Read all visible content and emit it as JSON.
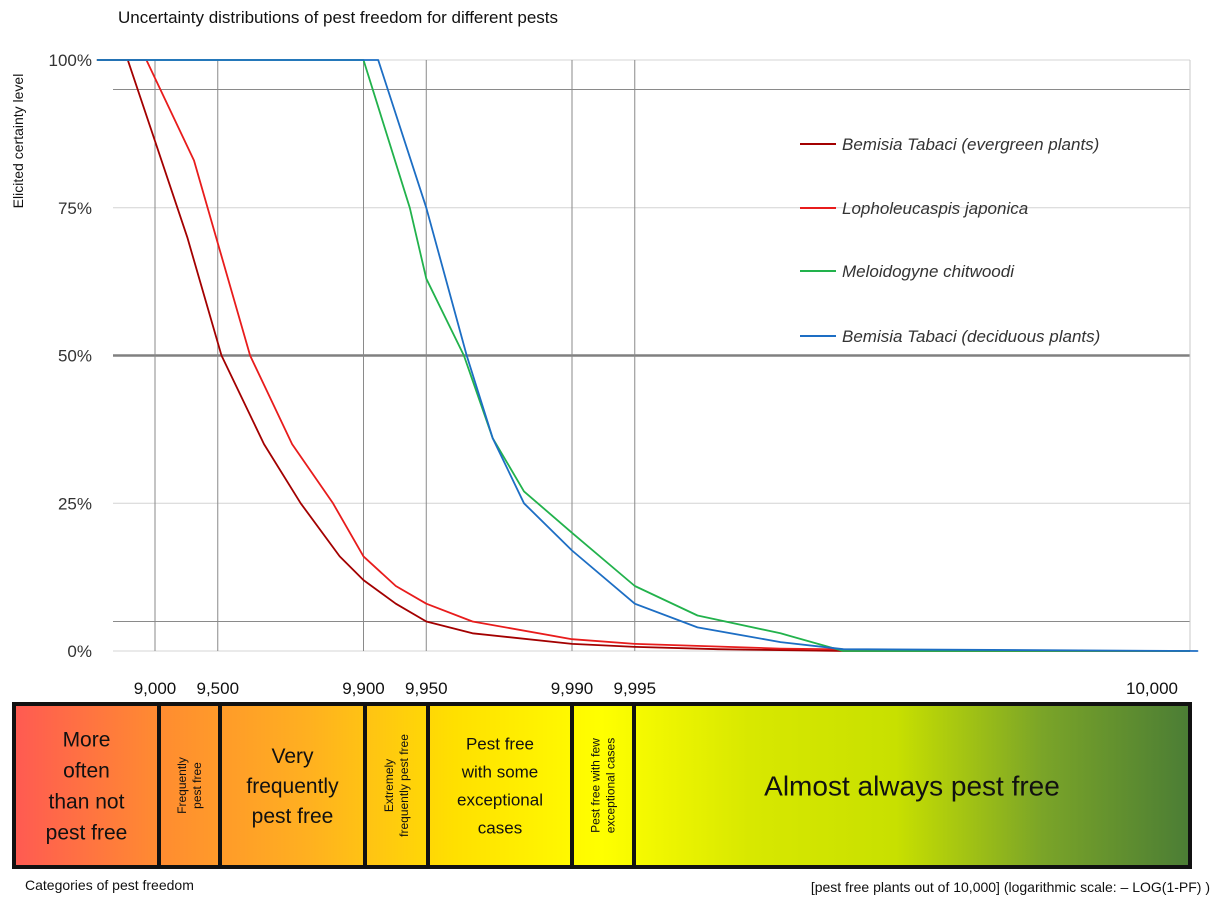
{
  "chart_data": {
    "type": "line",
    "title": "Uncertainty distributions of pest freedom for different pests",
    "ylabel": "Elicited certainty level",
    "xlabel": "[pest free plants out of 10,000] (logarithmic scale: – LOG(1-PF) )",
    "x_scale": "log",
    "y_ticks": [
      "0%",
      "25%",
      "50%",
      "75%",
      "100%"
    ],
    "y_tick_values": [
      0,
      25,
      50,
      75,
      100
    ],
    "ylim": [
      0,
      100
    ],
    "x_ticks": [
      "9,000",
      "9,500",
      "9,900",
      "9,950",
      "9,990",
      "9,995",
      "10,000"
    ],
    "x_tick_values": [
      9000,
      9500,
      9900,
      9950,
      9990,
      9995,
      10000
    ],
    "reference_lines_y": [
      5,
      50,
      95
    ],
    "legend_position": "right",
    "series": [
      {
        "name": "Bemisia Tabaci (evergreen plants)",
        "color": "#a30000",
        "points": [
          [
            8100,
            100
          ],
          [
            8650,
            100
          ],
          [
            9300,
            70
          ],
          [
            9520,
            50
          ],
          [
            9700,
            35
          ],
          [
            9800,
            25
          ],
          [
            9870,
            16
          ],
          [
            9900,
            12
          ],
          [
            9930,
            8
          ],
          [
            9950,
            5
          ],
          [
            9970,
            3
          ],
          [
            9990,
            1.2
          ],
          [
            9995,
            0.7
          ],
          [
            9998,
            0.3
          ],
          [
            9999.5,
            0
          ]
        ]
      },
      {
        "name": "Lopholeucaspis japonica",
        "color": "#e81c1c",
        "points": [
          [
            8100,
            100
          ],
          [
            8900,
            100
          ],
          [
            9350,
            83
          ],
          [
            9650,
            50
          ],
          [
            9780,
            35
          ],
          [
            9860,
            25
          ],
          [
            9900,
            16
          ],
          [
            9930,
            11
          ],
          [
            9950,
            8
          ],
          [
            9970,
            5
          ],
          [
            9990,
            2
          ],
          [
            9995,
            1.2
          ],
          [
            9999,
            0.4
          ],
          [
            9999.9,
            0
          ]
        ]
      },
      {
        "name": "Meloidogyne chitwoodi",
        "color": "#22b24c",
        "points": [
          [
            8100,
            100
          ],
          [
            9900,
            100
          ],
          [
            9940,
            75
          ],
          [
            9950,
            63
          ],
          [
            9967,
            50
          ],
          [
            9976,
            36
          ],
          [
            9983,
            27
          ],
          [
            9990,
            20
          ],
          [
            9995,
            11
          ],
          [
            9997.5,
            6
          ],
          [
            9999,
            3
          ],
          [
            9999.5,
            0
          ]
        ]
      },
      {
        "name": "Bemisia Tabaci (deciduous plants)",
        "color": "#1d6ec4",
        "points": [
          [
            8100,
            100
          ],
          [
            9915,
            100
          ],
          [
            9950,
            75
          ],
          [
            9968,
            50
          ],
          [
            9976,
            36
          ],
          [
            9983,
            25
          ],
          [
            9990,
            17
          ],
          [
            9995,
            8
          ],
          [
            9997.5,
            4
          ],
          [
            9999,
            1.5
          ],
          [
            9999.5,
            0.3
          ],
          [
            9999.99,
            0
          ]
        ]
      }
    ]
  },
  "categories": [
    {
      "label": "More often than not pest free",
      "lines": [
        "More",
        "often",
        "than not",
        "pest free"
      ]
    },
    {
      "label": "Frequently pest free",
      "lines": [
        "Frequently",
        "pest free"
      ]
    },
    {
      "label": "Very frequently pest free",
      "lines": [
        "Very",
        "frequently",
        "pest free"
      ]
    },
    {
      "label": "Extremely frequently pest free",
      "lines": [
        "Extremely",
        "frequently pest free"
      ]
    },
    {
      "label": "Pest free with some exceptional cases",
      "lines": [
        "Pest free",
        "with some",
        "exceptional",
        "cases"
      ]
    },
    {
      "label": "Pest free with few exceptional cases",
      "lines": [
        "Pest free with few",
        "exceptional cases"
      ]
    },
    {
      "label": "Almost always pest free",
      "lines": [
        "Almost always pest free"
      ]
    }
  ],
  "captions": {
    "categories": "Categories of pest freedom"
  },
  "colors": {
    "gradient": [
      "#ff5a52",
      "#ff8c30",
      "#ffb020",
      "#ffe000",
      "#ffff00",
      "#d8e800",
      "#c8e000",
      "#7aa428",
      "#4b7d35"
    ]
  }
}
